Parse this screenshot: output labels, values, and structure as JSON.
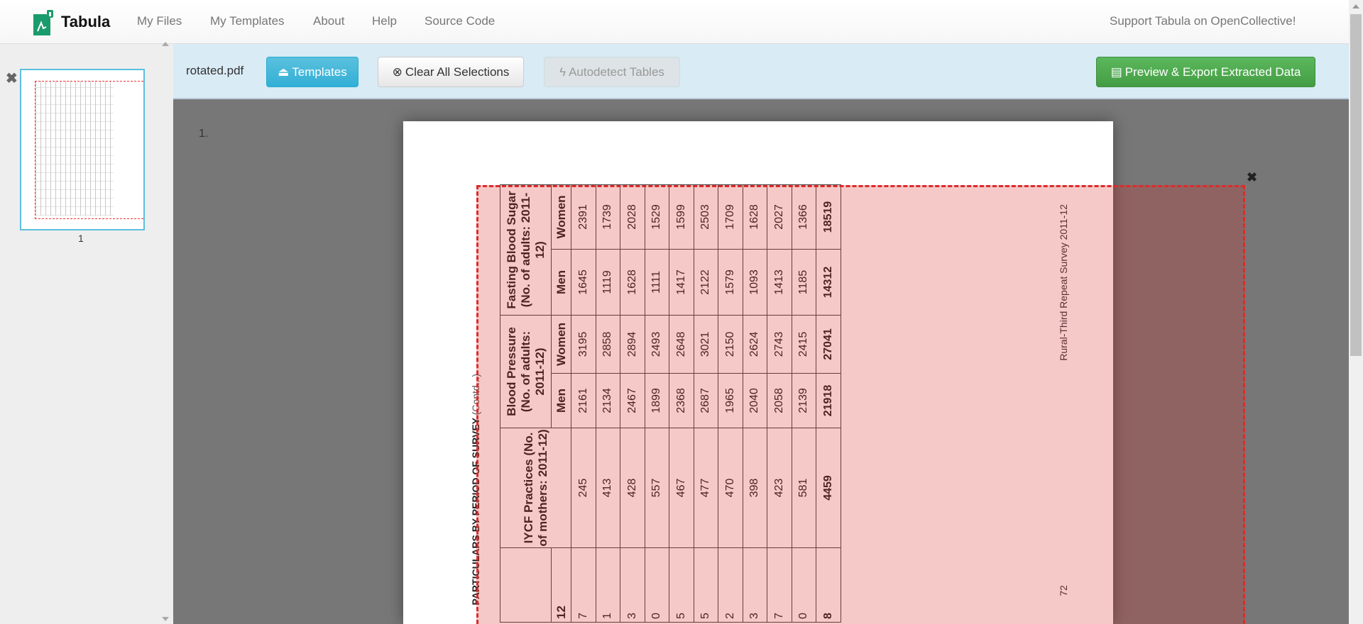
{
  "nav": {
    "brand": "Tabula",
    "links": [
      "My Files",
      "My Templates",
      "About",
      "Help",
      "Source Code"
    ],
    "support": "Support Tabula on OpenCollective!"
  },
  "sidebar": {
    "thumbnail_label": "1"
  },
  "toolbar": {
    "filename": "rotated.pdf",
    "templates": "Templates",
    "clear": "Clear All Selections",
    "autodetect": "Autodetect Tables",
    "export": "Preview & Export Extracted Data"
  },
  "colors": {
    "accent": "#5bc0de",
    "export": "#5cb85c",
    "selection": "#dd2b2b"
  },
  "main": {
    "page_number": "1."
  },
  "pdf": {
    "title": "PARTICULARS BY PERIOD OF SURVEY",
    "title_contd": "(Contd...)",
    "footer": "Rural-Third Repeat Survey 2011-12",
    "page": "72",
    "headers": {
      "iycf": "IYCF Practices (No. of mothers: 2011-12)",
      "bp": "Blood Pressure (No. of adults: 2011-12)",
      "fbs": "Fasting  Blood Sugar (No. of adults: 2011-12)",
      "men": "Men",
      "women": "Women",
      "partial_sub": "12"
    },
    "rows": [
      {
        "p": "7",
        "iycf": "245",
        "bpm": "2161",
        "bpw": "3195",
        "fm": "1645",
        "fw": "2391"
      },
      {
        "p": "1",
        "iycf": "413",
        "bpm": "2134",
        "bpw": "2858",
        "fm": "1119",
        "fw": "1739"
      },
      {
        "p": "3",
        "iycf": "428",
        "bpm": "2467",
        "bpw": "2894",
        "fm": "1628",
        "fw": "2028"
      },
      {
        "p": "0",
        "iycf": "557",
        "bpm": "1899",
        "bpw": "2493",
        "fm": "1111",
        "fw": "1529"
      },
      {
        "p": "5",
        "iycf": "467",
        "bpm": "2368",
        "bpw": "2648",
        "fm": "1417",
        "fw": "1599"
      },
      {
        "p": "5",
        "iycf": "477",
        "bpm": "2687",
        "bpw": "3021",
        "fm": "2122",
        "fw": "2503"
      },
      {
        "p": "2",
        "iycf": "470",
        "bpm": "1965",
        "bpw": "2150",
        "fm": "1579",
        "fw": "1709"
      },
      {
        "p": "3",
        "iycf": "398",
        "bpm": "2040",
        "bpw": "2624",
        "fm": "1093",
        "fw": "1628"
      },
      {
        "p": "7",
        "iycf": "423",
        "bpm": "2058",
        "bpw": "2743",
        "fm": "1413",
        "fw": "2027"
      },
      {
        "p": "0",
        "iycf": "581",
        "bpm": "2139",
        "bpw": "2415",
        "fm": "1185",
        "fw": "1366"
      }
    ],
    "total": {
      "p": "8",
      "iycf": "4459",
      "bpm": "21918",
      "bpw": "27041",
      "fm": "14312",
      "fw": "18519"
    }
  }
}
